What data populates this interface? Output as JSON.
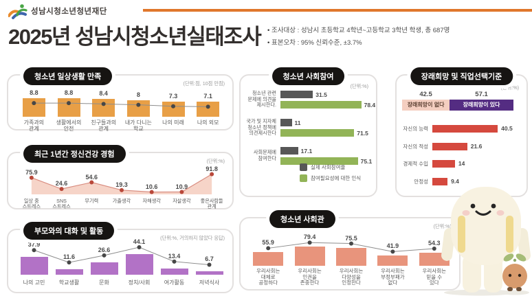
{
  "header": {
    "logo_text": "성남시청소년청년재단",
    "title": "2025년 성남시청소년실태조사",
    "notes": [
      "조사대상 : 성남시 초등학교 4학년~고등학교 3학년 학생, 총 687명",
      "표본오차 : 95% 신뢰수준, ±3.7%"
    ]
  },
  "colors": {
    "accent_orange": "#E0772C",
    "bar_orange": "#E89F46",
    "area_fill": "#F6D4C8",
    "area_line": "#D98D80",
    "area_dot": "#B9483A",
    "bar_purple": "#B272C6",
    "bar_dark": "#575757",
    "bar_green": "#92B457",
    "bar_salmon": "#E8947C",
    "bar_red": "#D5493E",
    "hope_no_bg": "#F4CEC0",
    "hope_no_text": "#5C4032",
    "hope_yes_bg": "#542C82",
    "pill_bg": "#161412"
  },
  "chart_data": [
    {
      "key": "daily_life",
      "type": "bar",
      "title": "청소년 일상생활 만족",
      "unit": "(단위:점, 10점 만점)",
      "categories": [
        "가족과의\n관계",
        "생활에서의\n안전",
        "친구들과의\n관계",
        "내가 다니는\n학교",
        "나의 미래",
        "나의 외모"
      ],
      "values": [
        8.8,
        8.8,
        8.4,
        8,
        7.3,
        7.1
      ],
      "ylim": [
        0,
        10
      ]
    },
    {
      "key": "mental_health",
      "type": "area",
      "title": "최근 1년간 정신건강 경험",
      "unit": "(단위:%)",
      "categories": [
        "일상 중\n스트레스",
        "SNS\n스트레스",
        "무기력",
        "가출생각",
        "자해생각",
        "자살생각",
        "좋은사람들\n관계"
      ],
      "values": [
        75.9,
        24.6,
        54.6,
        19.3,
        10.6,
        10.9,
        91.8
      ],
      "ylim": [
        0,
        100
      ]
    },
    {
      "key": "parent_talk",
      "type": "bar",
      "title": "부모와의 대화 및 활동",
      "unit": "(단위:%, 거의하지 않았다 응답)",
      "categories": [
        "나의 고민",
        "학교생활",
        "문화",
        "정치/사회",
        "여가활동",
        "저녁식사"
      ],
      "values": [
        37.9,
        11.6,
        26.6,
        44.1,
        13.4,
        6.7
      ],
      "ylim": [
        0,
        50
      ]
    },
    {
      "key": "social_participation",
      "type": "bar",
      "title": "청소년 사회참여",
      "unit": "(단위:%)",
      "categories": [
        "청소년 관련\n문제에 의견을\n제시한다.",
        "국가 및 지자체\n청소년 정책에\n의견제시한다",
        "사회문제에\n참여한다"
      ],
      "series": [
        {
          "name": "실제 사회참여율",
          "values": [
            31.5,
            11,
            17.1
          ]
        },
        {
          "name": "참여필요성에 대한 인식",
          "values": [
            78.4,
            71.5,
            75.1
          ]
        }
      ],
      "xlim": [
        0,
        100
      ]
    },
    {
      "key": "social_view",
      "type": "bar",
      "title": "청소년 사회관",
      "unit": "(단위:%)",
      "categories": [
        "우리사회는\n대체로\n공정하다",
        "우리사회는\n인권을\n존중한다",
        "우리사회는\n다양성을\n인정한다",
        "우리사회는\n부정부패가\n없다",
        "우리사회는\n믿을 수\n있다"
      ],
      "values": [
        55.9,
        79.4,
        75.5,
        41.9,
        54.3
      ],
      "ylim": [
        0,
        100
      ]
    },
    {
      "key": "career",
      "type": "bar",
      "title": "장래희망 및 직업선택기준",
      "unit": "(단위:%)",
      "segments": {
        "labels": [
          "장래희망이 없다",
          "장래희망이 있다"
        ],
        "values": [
          42.5,
          57.1
        ]
      },
      "categories": [
        "자신의 능력",
        "자신의 적성",
        "경제적 수입",
        "안정성"
      ],
      "values": [
        40.5,
        21.6,
        14,
        9.4
      ],
      "xlim": [
        0,
        50
      ]
    }
  ]
}
